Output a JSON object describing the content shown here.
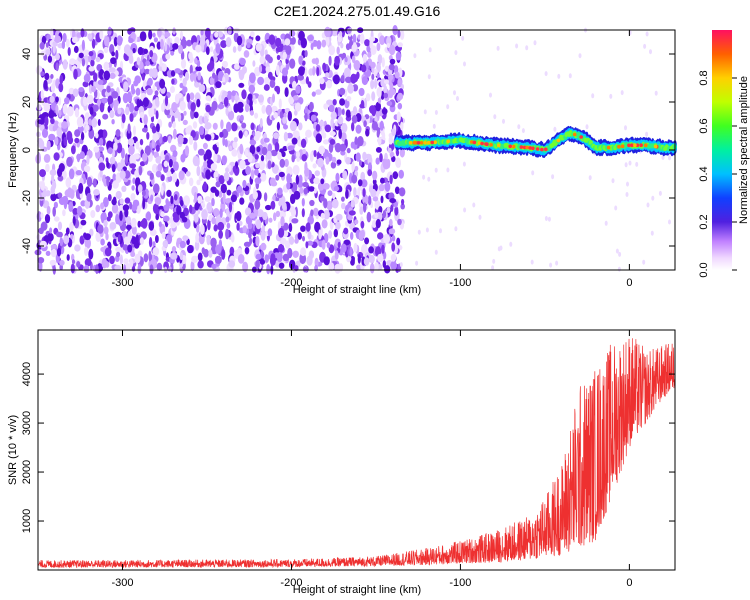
{
  "title": "C2E1.2024.275.01.49.G16",
  "chart_data": [
    {
      "type": "heatmap",
      "xlabel": "Height of straight line (km)",
      "ylabel": "Frequency (Hz)",
      "xlim": [
        -350,
        27
      ],
      "ylim": [
        -50,
        50
      ],
      "xticks": [
        -300,
        -200,
        -100,
        0
      ],
      "yticks": [
        -40,
        -20,
        0,
        20,
        40
      ],
      "colorbar": {
        "label": "Normalized spectral amplitude",
        "range": [
          0,
          1
        ],
        "ticks": [
          0.0,
          0.2,
          0.4,
          0.6,
          0.8
        ]
      },
      "signal_track": {
        "x": [
          -138,
          -120,
          -100,
          -80,
          -60,
          -50,
          -40,
          -35,
          -30,
          -25,
          -20,
          -10,
          0,
          10,
          20,
          27
        ],
        "y": [
          3,
          3,
          4,
          2,
          1,
          0,
          5,
          7,
          6,
          4,
          1,
          1,
          2,
          2,
          1,
          1
        ]
      },
      "noise_region_x": [
        -350,
        -138
      ]
    },
    {
      "type": "line",
      "xlabel": "Height of straight line (km)",
      "ylabel": "SNR (10 * v/v)",
      "xlim": [
        -350,
        27
      ],
      "ylim": [
        0,
        4900
      ],
      "xticks": [
        -300,
        -200,
        -100,
        0
      ],
      "yticks": [
        1000,
        2000,
        3000,
        4000
      ],
      "series": [
        {
          "color": "#ee3030",
          "envelope_x": [
            -350,
            -200,
            -150,
            -120,
            -100,
            -80,
            -60,
            -50,
            -40,
            -30,
            -20,
            -10,
            0,
            10,
            20,
            27
          ],
          "envelope_lo": [
            50,
            60,
            80,
            100,
            130,
            150,
            200,
            250,
            300,
            400,
            600,
            1500,
            2500,
            3000,
            3500,
            3700
          ],
          "envelope_hi": [
            200,
            220,
            280,
            450,
            600,
            800,
            1100,
            1500,
            2200,
            3800,
            4200,
            4700,
            4900,
            4500,
            4600,
            4700
          ]
        }
      ]
    }
  ]
}
